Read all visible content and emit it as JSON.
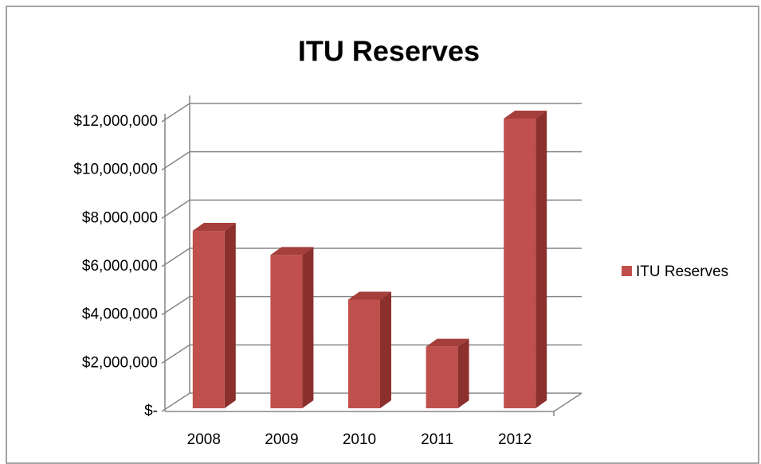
{
  "chart_data": {
    "type": "bar3d",
    "title": "ITU Reserves",
    "categories": [
      "2008",
      "2009",
      "2010",
      "2011",
      "2012"
    ],
    "series": [
      {
        "name": "ITU Reserves",
        "color": "#c0504d",
        "values": [
          7350000,
          6350000,
          4500000,
          2550000,
          12000000
        ]
      }
    ],
    "ylim": [
      0,
      12000000
    ],
    "yticks": [
      {
        "value": 0,
        "label": "$-"
      },
      {
        "value": 2000000,
        "label": "$2,000,000"
      },
      {
        "value": 4000000,
        "label": "$4,000,000"
      },
      {
        "value": 6000000,
        "label": "$6,000,000"
      },
      {
        "value": 8000000,
        "label": "$8,000,000"
      },
      {
        "value": 10000000,
        "label": "$10,000,000"
      },
      {
        "value": 12000000,
        "label": "$12,000,000"
      }
    ],
    "grid": true,
    "legend": "right"
  }
}
